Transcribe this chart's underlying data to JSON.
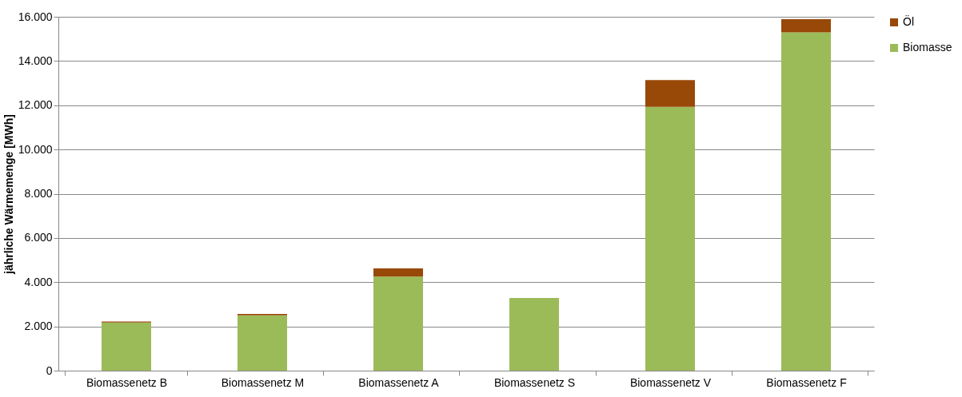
{
  "chart_data": {
    "type": "bar",
    "stacked": true,
    "ylabel": "jährliche Wärmemenge [MWh]",
    "categories": [
      "Biomassenetz B",
      "Biomassenetz M",
      "Biomassenetz A",
      "Biomassenetz S",
      "Biomassenetz V",
      "Biomassenetz F"
    ],
    "series": [
      {
        "name": "Biomasse",
        "color": "#9bbb59",
        "values": [
          2180,
          2500,
          4250,
          3290,
          11930,
          15300
        ]
      },
      {
        "name": "Öl",
        "color": "#984807",
        "values": [
          40,
          60,
          370,
          0,
          1210,
          590
        ]
      }
    ],
    "ylim": [
      0,
      16000
    ],
    "yticks": [
      {
        "value": 0,
        "label": "0"
      },
      {
        "value": 2000,
        "label": "2.000"
      },
      {
        "value": 4000,
        "label": "4.000"
      },
      {
        "value": 6000,
        "label": "6.000"
      },
      {
        "value": 8000,
        "label": "8.000"
      },
      {
        "value": 10000,
        "label": "10.000"
      },
      {
        "value": 12000,
        "label": "12.000"
      },
      {
        "value": 14000,
        "label": "14.000"
      },
      {
        "value": 16000,
        "label": "16.000"
      }
    ],
    "grid": "y",
    "legend": "right"
  }
}
